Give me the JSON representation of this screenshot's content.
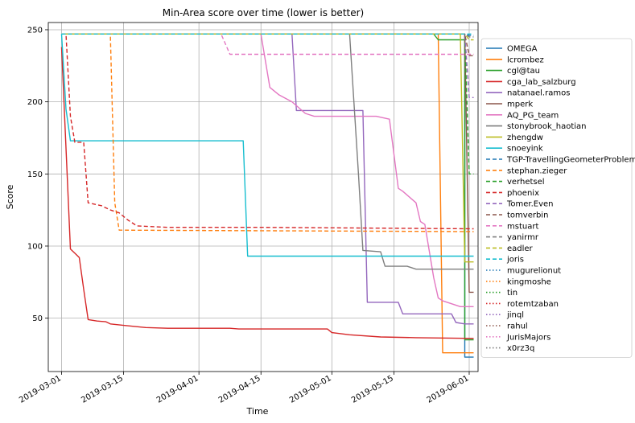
{
  "chart_data": {
    "type": "line",
    "title": "Min-Area score over time (lower is better)",
    "xlabel": "Time",
    "ylabel": "Score",
    "x_ticks": [
      "2019-03-01",
      "2019-03-15",
      "2019-04-01",
      "2019-04-15",
      "2019-05-01",
      "2019-05-15",
      "2019-06-01"
    ],
    "y_ticks": [
      50,
      100,
      150,
      200,
      250
    ],
    "xlim": [
      "2019-02-26",
      "2019-06-03"
    ],
    "ylim": [
      13,
      255
    ],
    "grid": true,
    "legend_position": "right",
    "series": [
      {
        "name": "OMEGA",
        "color": "#1f77b4",
        "dash": "solid",
        "points": [
          [
            "2019-03-01",
            247
          ],
          [
            "2019-05-31",
            247
          ],
          [
            "2019-05-31",
            23
          ],
          [
            "2019-06-02",
            23
          ]
        ]
      },
      {
        "name": "lcrombez",
        "color": "#ff7f0e",
        "dash": "solid",
        "points": [
          [
            "2019-03-01",
            247
          ],
          [
            "2019-05-25",
            247
          ],
          [
            "2019-05-26",
            26
          ],
          [
            "2019-06-02",
            26
          ]
        ]
      },
      {
        "name": "cgl@tau",
        "color": "#2ca02c",
        "dash": "solid",
        "points": [
          [
            "2019-03-01",
            247
          ],
          [
            "2019-05-24",
            247
          ],
          [
            "2019-05-25",
            243
          ],
          [
            "2019-05-31",
            243
          ],
          [
            "2019-05-31",
            35
          ],
          [
            "2019-06-02",
            35
          ]
        ]
      },
      {
        "name": "cga_lab_salzburg",
        "color": "#d62728",
        "dash": "solid",
        "points": [
          [
            "2019-03-01",
            238
          ],
          [
            "2019-03-03",
            98
          ],
          [
            "2019-03-04",
            95
          ],
          [
            "2019-03-05",
            92
          ],
          [
            "2019-03-06",
            70
          ],
          [
            "2019-03-07",
            49
          ],
          [
            "2019-03-09",
            48
          ],
          [
            "2019-03-11",
            47.5
          ],
          [
            "2019-03-12",
            46
          ],
          [
            "2019-03-15",
            45
          ],
          [
            "2019-03-20",
            43.5
          ],
          [
            "2019-03-25",
            43
          ],
          [
            "2019-04-08",
            43
          ],
          [
            "2019-04-10",
            42.5
          ],
          [
            "2019-04-30",
            42.5
          ],
          [
            "2019-05-01",
            40
          ],
          [
            "2019-05-05",
            38.5
          ],
          [
            "2019-05-12",
            37
          ],
          [
            "2019-05-20",
            36.5
          ],
          [
            "2019-06-02",
            36
          ]
        ]
      },
      {
        "name": "natanael.ramos",
        "color": "#9467bd",
        "dash": "solid",
        "points": [
          [
            "2019-03-01",
            247
          ],
          [
            "2019-04-22",
            247
          ],
          [
            "2019-04-23",
            194
          ],
          [
            "2019-05-08",
            194
          ],
          [
            "2019-05-09",
            61
          ],
          [
            "2019-05-16",
            61
          ],
          [
            "2019-05-17",
            53
          ],
          [
            "2019-05-28",
            53
          ],
          [
            "2019-05-29",
            47
          ],
          [
            "2019-05-31",
            46
          ],
          [
            "2019-06-02",
            46
          ]
        ]
      },
      {
        "name": "mperk",
        "color": "#8c564b",
        "dash": "solid",
        "points": [
          [
            "2019-03-01",
            247
          ],
          [
            "2019-05-31",
            247
          ],
          [
            "2019-06-01",
            68
          ],
          [
            "2019-06-02",
            68
          ]
        ]
      },
      {
        "name": "AQ_PG_team",
        "color": "#e377c2",
        "dash": "solid",
        "points": [
          [
            "2019-03-01",
            247
          ],
          [
            "2019-04-15",
            247
          ],
          [
            "2019-04-17",
            210
          ],
          [
            "2019-04-19",
            205
          ],
          [
            "2019-04-22",
            200
          ],
          [
            "2019-04-25",
            192
          ],
          [
            "2019-04-27",
            190
          ],
          [
            "2019-05-11",
            190
          ],
          [
            "2019-05-14",
            188
          ],
          [
            "2019-05-16",
            140
          ],
          [
            "2019-05-17",
            138
          ],
          [
            "2019-05-20",
            130
          ],
          [
            "2019-05-21",
            117
          ],
          [
            "2019-05-22",
            115
          ],
          [
            "2019-05-24",
            78
          ],
          [
            "2019-05-25",
            64
          ],
          [
            "2019-05-26",
            62
          ],
          [
            "2019-05-30",
            58
          ],
          [
            "2019-06-02",
            58
          ]
        ]
      },
      {
        "name": "stonybrook_haotian",
        "color": "#7f7f7f",
        "dash": "solid",
        "points": [
          [
            "2019-03-01",
            247
          ],
          [
            "2019-05-05",
            247
          ],
          [
            "2019-05-07",
            150
          ],
          [
            "2019-05-08",
            97
          ],
          [
            "2019-05-12",
            96
          ],
          [
            "2019-05-13",
            86
          ],
          [
            "2019-05-18",
            86
          ],
          [
            "2019-05-20",
            84
          ],
          [
            "2019-06-02",
            84
          ]
        ]
      },
      {
        "name": "zhengdw",
        "color": "#bcbd22",
        "dash": "solid",
        "points": [
          [
            "2019-03-01",
            247
          ],
          [
            "2019-05-30",
            247
          ],
          [
            "2019-05-31",
            89
          ],
          [
            "2019-06-02",
            89
          ]
        ]
      },
      {
        "name": "snoeyink",
        "color": "#17becf",
        "dash": "solid",
        "points": [
          [
            "2019-03-01",
            247
          ],
          [
            "2019-03-02",
            195
          ],
          [
            "2019-03-03",
            173
          ],
          [
            "2019-04-11",
            173
          ],
          [
            "2019-04-12",
            93
          ],
          [
            "2019-06-02",
            93
          ]
        ]
      },
      {
        "name": "TGP-TravellingGeometerProblem",
        "color": "#1f77b4",
        "dash": "dashed",
        "points": [
          [
            "2019-03-01",
            247
          ],
          [
            "2019-05-31",
            247
          ],
          [
            "2019-06-01",
            246
          ],
          [
            "2019-06-02",
            246
          ]
        ]
      },
      {
        "name": "stephan.zieger",
        "color": "#ff7f0e",
        "dash": "dashed",
        "points": [
          [
            "2019-03-01",
            247
          ],
          [
            "2019-03-12",
            247
          ],
          [
            "2019-03-13",
            130
          ],
          [
            "2019-03-14",
            111
          ],
          [
            "2019-06-02",
            110
          ]
        ]
      },
      {
        "name": "verhetsel",
        "color": "#2ca02c",
        "dash": "dashed",
        "points": [
          [
            "2019-03-01",
            247
          ],
          [
            "2019-05-31",
            247
          ],
          [
            "2019-06-01",
            150
          ],
          [
            "2019-06-02",
            150
          ]
        ]
      },
      {
        "name": "phoenix",
        "color": "#d62728",
        "dash": "dashed",
        "points": [
          [
            "2019-03-01",
            247
          ],
          [
            "2019-03-02",
            247
          ],
          [
            "2019-03-03",
            190
          ],
          [
            "2019-03-04",
            172
          ],
          [
            "2019-03-06",
            172
          ],
          [
            "2019-03-07",
            130
          ],
          [
            "2019-03-10",
            128
          ],
          [
            "2019-03-12",
            125
          ],
          [
            "2019-03-14",
            123
          ],
          [
            "2019-03-16",
            118
          ],
          [
            "2019-03-18",
            114
          ],
          [
            "2019-03-25",
            113
          ],
          [
            "2019-04-15",
            113
          ],
          [
            "2019-06-02",
            112
          ]
        ]
      },
      {
        "name": "Tomer.Even",
        "color": "#9467bd",
        "dash": "dashed",
        "points": [
          [
            "2019-03-01",
            247
          ],
          [
            "2019-05-31",
            247
          ],
          [
            "2019-06-01",
            203
          ],
          [
            "2019-06-02",
            203
          ]
        ]
      },
      {
        "name": "tomverbin",
        "color": "#8c564b",
        "dash": "dashed",
        "points": [
          [
            "2019-03-01",
            247
          ],
          [
            "2019-05-31",
            247
          ],
          [
            "2019-06-01",
            232
          ],
          [
            "2019-06-02",
            232
          ]
        ]
      },
      {
        "name": "mstuart",
        "color": "#e377c2",
        "dash": "dashed",
        "points": [
          [
            "2019-03-01",
            247
          ],
          [
            "2019-04-06",
            247
          ],
          [
            "2019-04-08",
            233
          ],
          [
            "2019-06-02",
            233
          ]
        ]
      },
      {
        "name": "yanirmr",
        "color": "#7f7f7f",
        "dash": "dashed",
        "points": [
          [
            "2019-03-01",
            247
          ],
          [
            "2019-05-31",
            247
          ],
          [
            "2019-06-01",
            245
          ],
          [
            "2019-06-02",
            245
          ]
        ]
      },
      {
        "name": "eadler",
        "color": "#bcbd22",
        "dash": "dashed",
        "points": [
          [
            "2019-03-01",
            247
          ],
          [
            "2019-05-31",
            247
          ],
          [
            "2019-06-01",
            243
          ],
          [
            "2019-06-02",
            243
          ]
        ]
      },
      {
        "name": "joris",
        "color": "#17becf",
        "dash": "dashed",
        "points": [
          [
            "2019-03-01",
            247
          ],
          [
            "2019-06-02",
            247
          ]
        ]
      },
      {
        "name": "mugurelionut",
        "color": "#1f77b4",
        "dash": "dotted",
        "points": []
      },
      {
        "name": "kingmoshe",
        "color": "#ff7f0e",
        "dash": "dotted",
        "points": []
      },
      {
        "name": "tin",
        "color": "#2ca02c",
        "dash": "dotted",
        "points": []
      },
      {
        "name": "rotemtzaban",
        "color": "#d62728",
        "dash": "dotted",
        "points": []
      },
      {
        "name": "jinql",
        "color": "#9467bd",
        "dash": "dotted",
        "points": []
      },
      {
        "name": "rahul",
        "color": "#8c564b",
        "dash": "dotted",
        "points": []
      },
      {
        "name": "JurisMajors",
        "color": "#e377c2",
        "dash": "dotted",
        "points": []
      },
      {
        "name": "x0rz3q",
        "color": "#7f7f7f",
        "dash": "dotted",
        "points": []
      }
    ]
  }
}
